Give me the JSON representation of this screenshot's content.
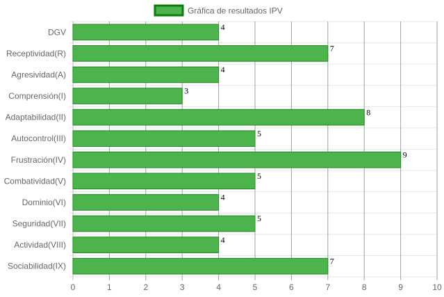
{
  "chart_data": {
    "type": "bar",
    "orientation": "horizontal",
    "categories": [
      "DGV",
      "Receptividad(R)",
      "Agresividad(A)",
      "Comprensión(I)",
      "Adaptabilidad(II)",
      "Autocontrol(III)",
      "Frustración(IV)",
      "Combatividad(V)",
      "Dominio(VI)",
      "Seguridad(VII)",
      "Actividad(VIII)",
      "Sociabilidad(IX)"
    ],
    "series": [
      {
        "name": "Gráfica de resultados IPV",
        "values": [
          4,
          7,
          4,
          3,
          8,
          5,
          9,
          5,
          4,
          5,
          4,
          7
        ]
      }
    ],
    "xlim": [
      0,
      10
    ],
    "x_ticks": [
      "0",
      "1",
      "2",
      "3",
      "4",
      "5",
      "6",
      "7",
      "8",
      "9",
      "10"
    ],
    "grid": true,
    "legend_position": "top",
    "colors": {
      "bar_fill": "#4db34d",
      "bar_border": "#1e8c1e",
      "legend_fill": "#4db34d",
      "legend_border": "#0a7d0a",
      "grid": "#e6e6e6",
      "grid_major": "#a0a0a0",
      "text": "#666666"
    }
  }
}
